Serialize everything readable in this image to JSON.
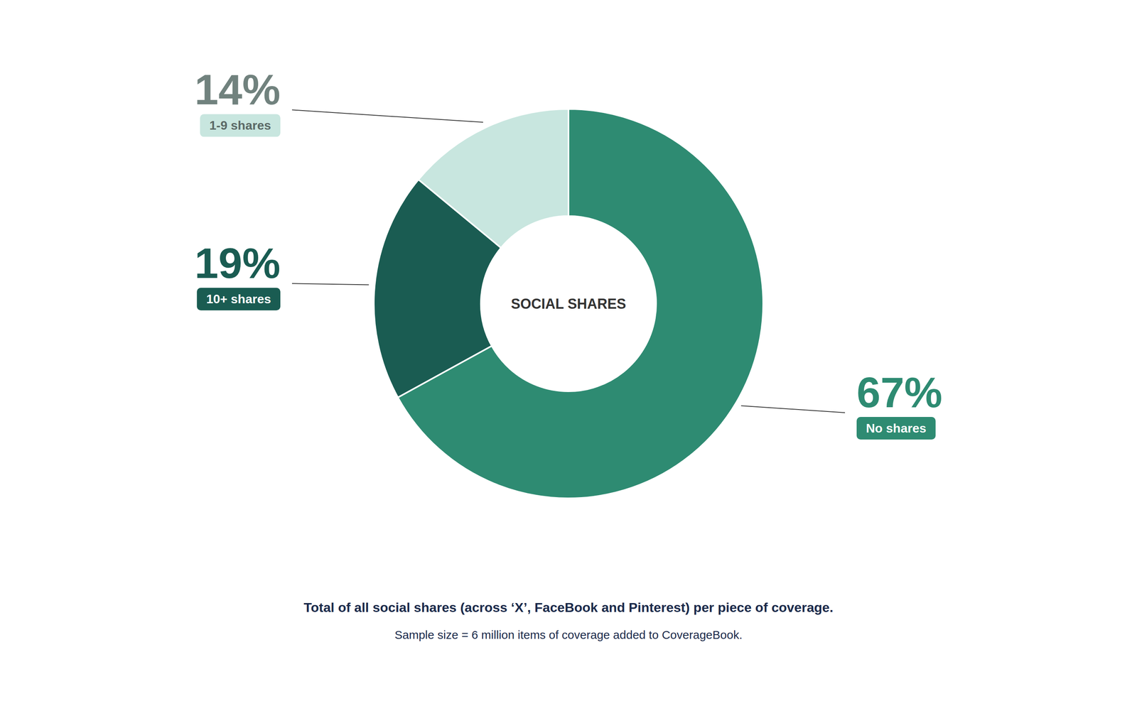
{
  "chart_data": {
    "type": "pie",
    "title": "SOCIAL SHARES",
    "categories": [
      "No shares",
      "10+ shares",
      "1-9 shares"
    ],
    "values": [
      67,
      19,
      14
    ],
    "colors": [
      "#2e8b72",
      "#1a5c52",
      "#c8e6df"
    ],
    "data_labels": true,
    "value_labels": [
      "67%",
      "19%",
      "14%"
    ],
    "annotations": [
      "Total of all social shares (across ‘X’, FaceBook and Pinterest) per piece of coverage.",
      "Sample size = 6 million items of coverage added to CoverageBook."
    ]
  }
}
